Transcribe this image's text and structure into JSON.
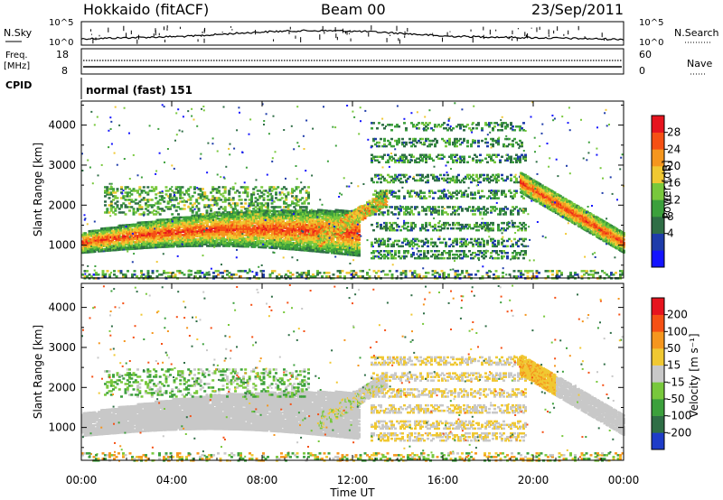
{
  "header": {
    "radar": "Hokkaido (fitACF)",
    "beam": "Beam 00",
    "date": "23/Sep/2011"
  },
  "top_panel": {
    "left_label": "N.Sky",
    "right_label": "N.Search",
    "left_ticks": [
      "10^5",
      "10^0"
    ],
    "right_ticks": [
      "10^5",
      "10^0"
    ]
  },
  "freq_panel": {
    "left_label_1": "Freq.",
    "left_label_2": "[MHz]",
    "left_ticks": [
      "18",
      "8"
    ],
    "right_label": "Nave",
    "right_ticks": [
      "60",
      "0"
    ]
  },
  "cpid_panel": {
    "label": "CPID",
    "text": "normal (fast) 151"
  },
  "colors": {
    "power_scale": [
      "#1414ff",
      "#1e3caa",
      "#2f6e46",
      "#3ca03c",
      "#78c83c",
      "#f0c832",
      "#f5961e",
      "#f55014",
      "#e6141e"
    ],
    "velocity_scale": [
      "#1e3cc8",
      "#2f6e46",
      "#3ca03c",
      "#78c83c",
      "#c8c8c8",
      "#f0c832",
      "#f5961e",
      "#f55014",
      "#e6141e"
    ]
  },
  "chart_data": [
    {
      "type": "heatmap",
      "name": "Power",
      "title": "",
      "xlabel": "Time UT",
      "ylabel": "Slant Range [km]",
      "xlim": [
        "00:00",
        "24:00"
      ],
      "ylim": [
        180,
        4600
      ],
      "x_ticks": [
        "00:00",
        "04:00",
        "08:00",
        "12:00",
        "16:00",
        "20:00",
        "00:00"
      ],
      "y_ticks": [
        1000,
        2000,
        3000,
        4000
      ],
      "colorbar": {
        "label": "Power [dB]",
        "ticks": [
          "28",
          "24",
          "20",
          "16",
          "12",
          "8",
          "4"
        ],
        "range": [
          0,
          32
        ]
      },
      "features": [
        {
          "description_hours": [
            0,
            12.2
          ],
          "range_km": [
            800,
            1700
          ],
          "value_db": [
            20,
            30
          ]
        },
        {
          "description_hours": [
            19.5,
            24
          ],
          "range_km": [
            700,
            2800
          ],
          "value_db": [
            18,
            30
          ]
        },
        {
          "description_hours": [
            12.5,
            19.5
          ],
          "range_km": [
            700,
            4200
          ],
          "value_db": [
            4,
            16
          ]
        },
        {
          "description_hours": [
            1,
            10
          ],
          "range_km": [
            1800,
            2500
          ],
          "value_db": [
            8,
            20
          ]
        }
      ]
    },
    {
      "type": "heatmap",
      "name": "Velocity",
      "title": "",
      "xlabel": "Time UT",
      "ylabel": "Slant Range [km]",
      "xlim": [
        "00:00",
        "24:00"
      ],
      "ylim": [
        180,
        4600
      ],
      "x_ticks": [
        "00:00",
        "04:00",
        "08:00",
        "12:00",
        "16:00",
        "20:00",
        "00:00"
      ],
      "y_ticks": [
        1000,
        2000,
        3000,
        4000
      ],
      "colorbar": {
        "label": "Velocity [m s⁻¹]",
        "ticks": [
          "200",
          "100",
          "50",
          "15",
          "-15",
          "-50",
          "-100",
          "-200"
        ],
        "range": [
          -250,
          250
        ]
      },
      "features": [
        {
          "description_hours": [
            0,
            12.2
          ],
          "range_km": [
            700,
            1700
          ],
          "value_ms": [
            -15,
            15
          ]
        },
        {
          "description_hours": [
            12.5,
            19.5
          ],
          "range_km": [
            700,
            3000
          ],
          "value_ms": [
            15,
            100
          ]
        },
        {
          "description_hours": [
            19.5,
            24
          ],
          "range_km": [
            700,
            2800
          ],
          "value_ms": [
            15,
            100
          ]
        }
      ]
    }
  ]
}
